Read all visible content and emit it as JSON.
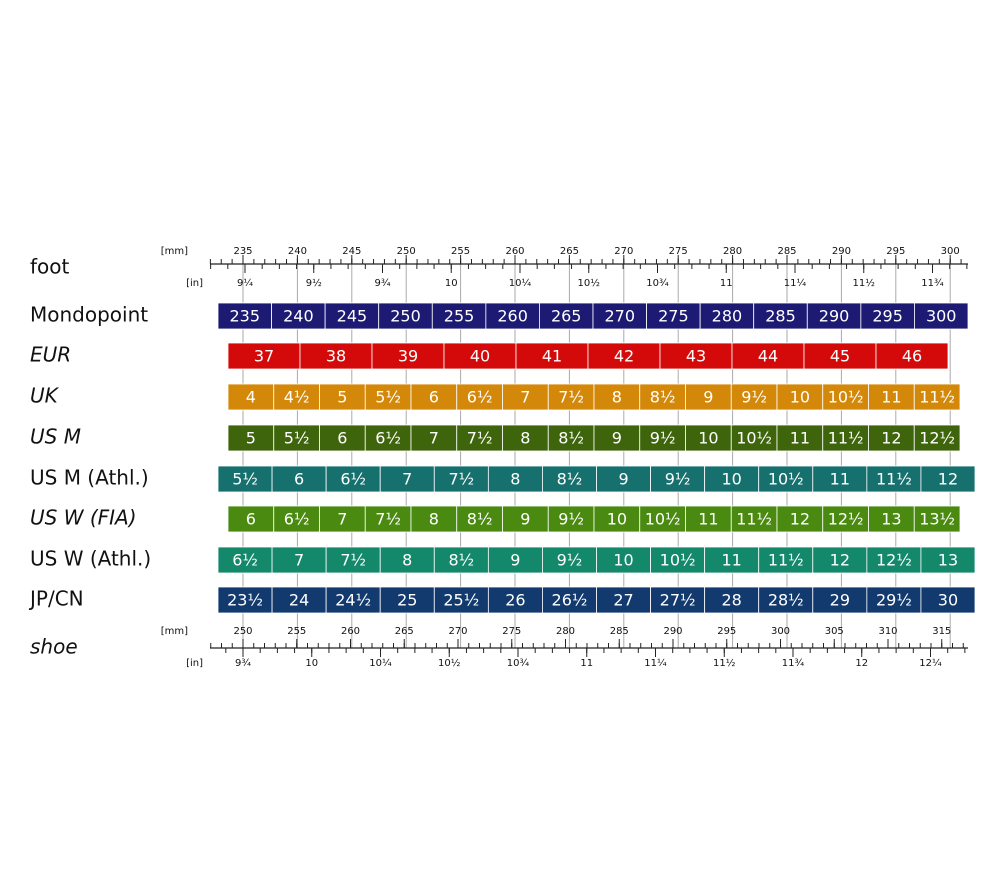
{
  "foot_scale": {
    "label": "foot",
    "mm_unit": "[mm]",
    "in_unit": "[in]",
    "mm_ticks": [
      235,
      240,
      245,
      250,
      255,
      260,
      265,
      270,
      275,
      280,
      285,
      290,
      295,
      300
    ],
    "in_ticks": [
      {
        "value": 9.25,
        "label": "9¼"
      },
      {
        "value": 9.5,
        "label": "9½"
      },
      {
        "value": 9.75,
        "label": "9¾"
      },
      {
        "value": 10,
        "label": "10"
      },
      {
        "value": 10.25,
        "label": "10¼"
      },
      {
        "value": 10.5,
        "label": "10½"
      },
      {
        "value": 10.75,
        "label": "10¾"
      },
      {
        "value": 11,
        "label": "11"
      },
      {
        "value": 11.25,
        "label": "11¼"
      },
      {
        "value": 11.5,
        "label": "11½"
      },
      {
        "value": 11.75,
        "label": "11¾"
      }
    ]
  },
  "rows": [
    {
      "label": "Mondopoint",
      "italic": false,
      "cells": [
        "235",
        "240",
        "245",
        "250",
        "255",
        "260",
        "265",
        "270",
        "275",
        "280",
        "285",
        "290",
        "295",
        "300"
      ]
    },
    {
      "label": "EUR",
      "italic": true,
      "cells": [
        "37",
        "38",
        "39",
        "40",
        "41",
        "42",
        "43",
        "44",
        "45",
        "46"
      ]
    },
    {
      "label": "UK",
      "italic": true,
      "cells": [
        "4",
        "4½",
        "5",
        "5½",
        "6",
        "6½",
        "7",
        "7½",
        "8",
        "8½",
        "9",
        "9½",
        "10",
        "10½",
        "11",
        "11½"
      ]
    },
    {
      "label": "US M",
      "italic": true,
      "cells": [
        "5",
        "5½",
        "6",
        "6½",
        "7",
        "7½",
        "8",
        "8½",
        "9",
        "9½",
        "10",
        "10½",
        "11",
        "11½",
        "12",
        "12½"
      ]
    },
    {
      "label": "US M (Athl.)",
      "italic": false,
      "cells": [
        "5½",
        "6",
        "6½",
        "7",
        "7½",
        "8",
        "8½",
        "9",
        "9½",
        "10",
        "10½",
        "11",
        "11½",
        "12"
      ]
    },
    {
      "label": "US W (FIA)",
      "italic": true,
      "cells": [
        "6",
        "6½",
        "7",
        "7½",
        "8",
        "8½",
        "9",
        "9½",
        "10",
        "10½",
        "11",
        "11½",
        "12",
        "12½",
        "13",
        "13½"
      ]
    },
    {
      "label": "US W (Athl.)",
      "italic": false,
      "cells": [
        "6½",
        "7",
        "7½",
        "8",
        "8½",
        "9",
        "9½",
        "10",
        "10½",
        "11",
        "11½",
        "12",
        "12½",
        "13"
      ]
    },
    {
      "label": "JP/CN",
      "italic": false,
      "cells": [
        "23½",
        "24",
        "24½",
        "25",
        "25½",
        "26",
        "26½",
        "27",
        "27½",
        "28",
        "28½",
        "29",
        "29½",
        "30"
      ]
    }
  ],
  "shoe_scale": {
    "label": "shoe",
    "mm_unit": "[mm]",
    "in_unit": "[in]",
    "mm_ticks": [
      250,
      255,
      260,
      265,
      270,
      275,
      280,
      285,
      290,
      295,
      300,
      305,
      310,
      315
    ],
    "in_ticks": [
      {
        "value": 9.75,
        "label": "9¾"
      },
      {
        "value": 10,
        "label": "10"
      },
      {
        "value": 10.25,
        "label": "10¼"
      },
      {
        "value": 10.5,
        "label": "10½"
      },
      {
        "value": 10.75,
        "label": "10¾"
      },
      {
        "value": 11,
        "label": "11"
      },
      {
        "value": 11.25,
        "label": "11¼"
      },
      {
        "value": 11.5,
        "label": "11½"
      },
      {
        "value": 11.75,
        "label": "11¾"
      },
      {
        "value": 12,
        "label": "12"
      },
      {
        "value": 12.25,
        "label": "12¼"
      }
    ]
  }
}
